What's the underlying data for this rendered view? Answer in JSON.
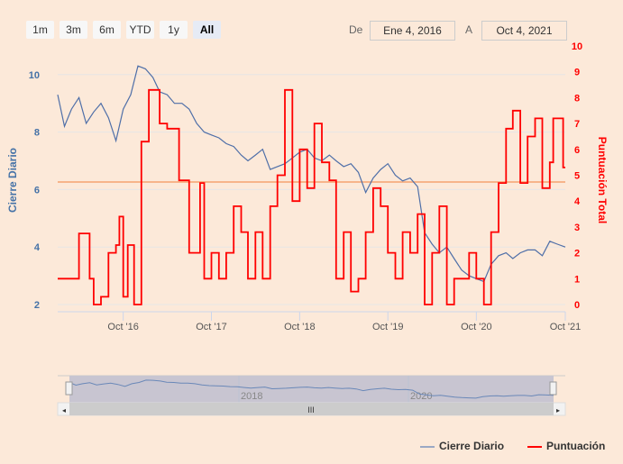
{
  "range_selector": {
    "buttons": [
      "1m",
      "3m",
      "6m",
      "YTD",
      "1y",
      "All"
    ],
    "selected": "All",
    "from_label": "De",
    "from_value": "Ene 4, 2016",
    "to_label": "A",
    "to_value": "Oct 4, 2021"
  },
  "navigator": {
    "labels": [
      "2018",
      "2020"
    ]
  },
  "chart_data": {
    "type": "line",
    "title": "",
    "xlabel": "",
    "x_ticks": [
      "Oct '16",
      "Oct '17",
      "Oct '18",
      "Oct '19",
      "Oct '20",
      "Oct '21"
    ],
    "x_range": [
      "2016-01-04",
      "2021-10-04"
    ],
    "y_axes": [
      {
        "label": "Cierre Diario",
        "range": [
          2,
          11
        ],
        "ticks": [
          "2",
          "4",
          "6",
          "8",
          "10"
        ],
        "color": "#4572a7"
      },
      {
        "label": "Puntuación Total",
        "range": [
          0,
          10
        ],
        "ticks": [
          "0",
          "1",
          "2",
          "3",
          "4",
          "5",
          "6",
          "7",
          "8",
          "9",
          "10"
        ],
        "color": "#ff0000"
      }
    ],
    "plot_line": {
      "axis": "right",
      "value": 4.75,
      "color": "#f7b48a"
    },
    "legend": "bottom-right",
    "grid": true,
    "series": [
      {
        "name": "Cierre Diario",
        "axis": "left",
        "color": "#4f6fa8",
        "step": false,
        "points": [
          [
            "2016-01-04",
            9.3
          ],
          [
            "2016-02-01",
            8.2
          ],
          [
            "2016-03-01",
            8.8
          ],
          [
            "2016-04-01",
            9.2
          ],
          [
            "2016-05-01",
            8.3
          ],
          [
            "2016-06-01",
            8.7
          ],
          [
            "2016-07-01",
            9.0
          ],
          [
            "2016-08-01",
            8.5
          ],
          [
            "2016-09-01",
            7.7
          ],
          [
            "2016-10-01",
            8.8
          ],
          [
            "2016-11-01",
            9.3
          ],
          [
            "2016-12-01",
            10.3
          ],
          [
            "2017-01-01",
            10.2
          ],
          [
            "2017-02-01",
            9.9
          ],
          [
            "2017-03-01",
            9.4
          ],
          [
            "2017-04-01",
            9.3
          ],
          [
            "2017-05-01",
            9.0
          ],
          [
            "2017-06-01",
            9.0
          ],
          [
            "2017-07-01",
            8.8
          ],
          [
            "2017-08-01",
            8.3
          ],
          [
            "2017-09-01",
            8.0
          ],
          [
            "2017-10-01",
            7.9
          ],
          [
            "2017-11-01",
            7.8
          ],
          [
            "2017-12-01",
            7.6
          ],
          [
            "2018-01-01",
            7.5
          ],
          [
            "2018-02-01",
            7.2
          ],
          [
            "2018-03-01",
            7.0
          ],
          [
            "2018-04-01",
            7.2
          ],
          [
            "2018-05-01",
            7.4
          ],
          [
            "2018-06-01",
            6.7
          ],
          [
            "2018-07-01",
            6.8
          ],
          [
            "2018-08-01",
            6.9
          ],
          [
            "2018-09-01",
            7.1
          ],
          [
            "2018-10-01",
            7.3
          ],
          [
            "2018-11-01",
            7.4
          ],
          [
            "2018-12-01",
            7.1
          ],
          [
            "2019-01-01",
            7.0
          ],
          [
            "2019-02-01",
            7.2
          ],
          [
            "2019-03-01",
            7.0
          ],
          [
            "2019-04-01",
            6.8
          ],
          [
            "2019-05-01",
            6.9
          ],
          [
            "2019-06-01",
            6.6
          ],
          [
            "2019-07-01",
            5.9
          ],
          [
            "2019-08-01",
            6.4
          ],
          [
            "2019-09-01",
            6.7
          ],
          [
            "2019-10-01",
            6.9
          ],
          [
            "2019-11-01",
            6.5
          ],
          [
            "2019-12-01",
            6.3
          ],
          [
            "2020-01-01",
            6.4
          ],
          [
            "2020-02-01",
            6.1
          ],
          [
            "2020-03-01",
            4.5
          ],
          [
            "2020-04-01",
            4.1
          ],
          [
            "2020-05-01",
            3.8
          ],
          [
            "2020-06-01",
            4.0
          ],
          [
            "2020-07-01",
            3.6
          ],
          [
            "2020-08-01",
            3.2
          ],
          [
            "2020-09-01",
            3.0
          ],
          [
            "2020-10-01",
            2.9
          ],
          [
            "2020-11-01",
            2.8
          ],
          [
            "2020-12-01",
            3.4
          ],
          [
            "2021-01-01",
            3.7
          ],
          [
            "2021-02-01",
            3.8
          ],
          [
            "2021-03-01",
            3.6
          ],
          [
            "2021-04-01",
            3.8
          ],
          [
            "2021-05-01",
            3.9
          ],
          [
            "2021-06-01",
            3.9
          ],
          [
            "2021-07-01",
            3.7
          ],
          [
            "2021-08-01",
            4.2
          ],
          [
            "2021-09-01",
            4.1
          ],
          [
            "2021-10-04",
            4.0
          ]
        ]
      },
      {
        "name": "Puntuación",
        "axis": "right",
        "color": "#ff0000",
        "step": true,
        "points": [
          [
            "2016-01-04",
            1
          ],
          [
            "2016-04-01",
            2.75
          ],
          [
            "2016-05-15",
            1
          ],
          [
            "2016-06-01",
            0
          ],
          [
            "2016-07-01",
            0.3
          ],
          [
            "2016-08-01",
            2
          ],
          [
            "2016-09-01",
            2.3
          ],
          [
            "2016-09-15",
            3.4
          ],
          [
            "2016-10-01",
            0.3
          ],
          [
            "2016-10-20",
            2.3
          ],
          [
            "2016-11-15",
            0
          ],
          [
            "2016-12-15",
            6.3
          ],
          [
            "2017-01-15",
            8.3
          ],
          [
            "2017-03-01",
            7
          ],
          [
            "2017-04-01",
            6.8
          ],
          [
            "2017-05-20",
            4.8
          ],
          [
            "2017-07-01",
            2
          ],
          [
            "2017-08-15",
            4.7
          ],
          [
            "2017-09-01",
            1
          ],
          [
            "2017-10-01",
            2
          ],
          [
            "2017-11-01",
            1
          ],
          [
            "2017-12-01",
            2
          ],
          [
            "2018-01-01",
            3.8
          ],
          [
            "2018-02-01",
            2.8
          ],
          [
            "2018-03-01",
            1
          ],
          [
            "2018-04-01",
            2.8
          ],
          [
            "2018-05-01",
            1
          ],
          [
            "2018-06-01",
            3.8
          ],
          [
            "2018-07-01",
            5
          ],
          [
            "2018-08-01",
            8.3
          ],
          [
            "2018-09-01",
            4
          ],
          [
            "2018-10-01",
            6
          ],
          [
            "2018-11-01",
            4.5
          ],
          [
            "2018-12-01",
            7
          ],
          [
            "2019-01-01",
            5.5
          ],
          [
            "2019-02-01",
            4.8
          ],
          [
            "2019-03-01",
            1
          ],
          [
            "2019-04-01",
            2.8
          ],
          [
            "2019-05-01",
            0.5
          ],
          [
            "2019-06-01",
            1
          ],
          [
            "2019-07-01",
            2.8
          ],
          [
            "2019-08-01",
            4.5
          ],
          [
            "2019-09-01",
            3.8
          ],
          [
            "2019-10-01",
            2
          ],
          [
            "2019-11-01",
            1
          ],
          [
            "2019-12-01",
            2.8
          ],
          [
            "2020-01-01",
            2
          ],
          [
            "2020-02-01",
            3.5
          ],
          [
            "2020-03-01",
            0
          ],
          [
            "2020-04-01",
            2
          ],
          [
            "2020-05-01",
            3.8
          ],
          [
            "2020-06-01",
            0
          ],
          [
            "2020-07-01",
            1
          ],
          [
            "2020-09-01",
            2
          ],
          [
            "2020-10-01",
            1
          ],
          [
            "2020-11-01",
            0
          ],
          [
            "2020-12-01",
            2.8
          ],
          [
            "2021-01-01",
            4.7
          ],
          [
            "2021-02-01",
            6.8
          ],
          [
            "2021-03-01",
            7.5
          ],
          [
            "2021-04-01",
            4.7
          ],
          [
            "2021-05-01",
            6.5
          ],
          [
            "2021-06-01",
            7.2
          ],
          [
            "2021-07-01",
            4.5
          ],
          [
            "2021-08-01",
            5.5
          ],
          [
            "2021-08-15",
            7.2
          ],
          [
            "2021-09-25",
            5.3
          ],
          [
            "2021-10-04",
            5.3
          ]
        ]
      }
    ]
  }
}
